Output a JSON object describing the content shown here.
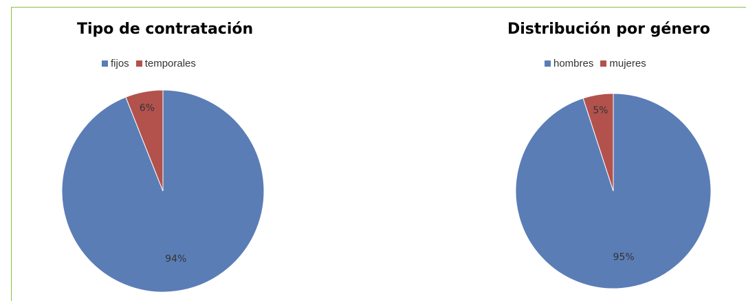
{
  "colors": {
    "frame_border": "#8bbf45",
    "series_blue": "#5b7db6",
    "series_red": "#b3524d"
  },
  "chart_data": [
    {
      "type": "pie",
      "title": "Tipo de contratación",
      "legend_position": "top",
      "categories": [
        "fijos",
        "temporales"
      ],
      "values": [
        94,
        6
      ],
      "labels": [
        "94%",
        "6%"
      ],
      "colors": [
        "#5b7db6",
        "#b3524d"
      ]
    },
    {
      "type": "pie",
      "title": "Distribución por género",
      "legend_position": "top",
      "categories": [
        "hombres",
        "mujeres"
      ],
      "values": [
        95,
        5
      ],
      "labels": [
        "95%",
        "5%"
      ],
      "colors": [
        "#5b7db6",
        "#b3524d"
      ]
    }
  ]
}
